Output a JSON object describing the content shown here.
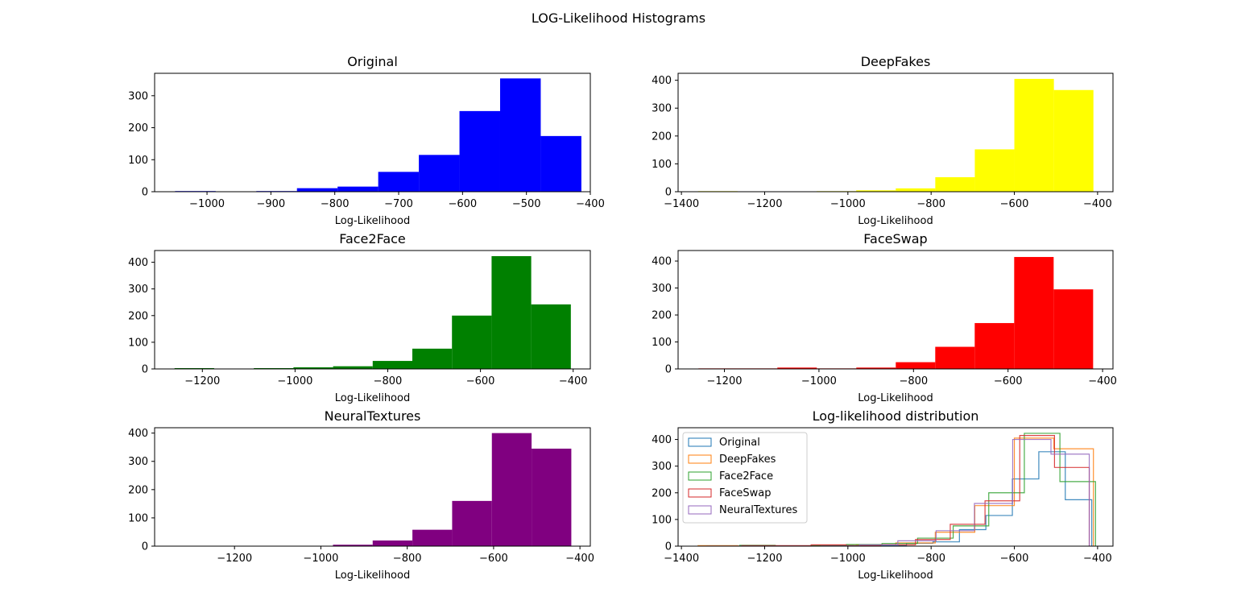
{
  "figure": {
    "title": "LOG-Likelihood Histograms"
  },
  "chart_data": [
    {
      "type": "bar",
      "title": "Original",
      "xlabel": "Log-Likelihood",
      "ylabel": "",
      "color": "#0000ff",
      "xlim": [
        -1082,
        -400
      ],
      "ylim": [
        0,
        370
      ],
      "xticks": [
        -1000,
        -900,
        -800,
        -700,
        -600,
        -500,
        -400
      ],
      "xtick_labels": [
        "−1000",
        "−900",
        "−800",
        "−700",
        "−600",
        "−500",
        "−400"
      ],
      "yticks": [
        0,
        100,
        200,
        300
      ],
      "ytick_labels": [
        "0",
        "100",
        "200",
        "300"
      ],
      "bin_edges": [
        -1050,
        -986.4,
        -922.8,
        -859.2,
        -795.6,
        -732,
        -668.4,
        -604.8,
        -541.2,
        -477.6,
        -414
      ],
      "values": [
        2,
        1,
        2,
        11,
        16,
        62,
        115,
        252,
        354,
        174
      ]
    },
    {
      "type": "bar",
      "title": "DeepFakes",
      "xlabel": "Log-Likelihood",
      "ylabel": "",
      "color": "#ffff00",
      "xlim": [
        -1408,
        -363
      ],
      "ylim": [
        0,
        425
      ],
      "xticks": [
        -1400,
        -1200,
        -1000,
        -800,
        -600,
        -400
      ],
      "xtick_labels": [
        "−1400",
        "−1200",
        "−1000",
        "−800",
        "−600",
        "−400"
      ],
      "yticks": [
        0,
        100,
        200,
        300,
        400
      ],
      "ytick_labels": [
        "0",
        "100",
        "200",
        "300",
        "400"
      ],
      "bin_edges": [
        -1360,
        -1265,
        -1170,
        -1075,
        -980,
        -885,
        -790,
        -695,
        -600,
        -505,
        -410
      ],
      "values": [
        2,
        1,
        1,
        2,
        5,
        12,
        52,
        152,
        405,
        365
      ]
    },
    {
      "type": "bar",
      "title": "Face2Face",
      "xlabel": "Log-Likelihood",
      "ylabel": "",
      "color": "#008000",
      "xlim": [
        -1303,
        -363
      ],
      "ylim": [
        0,
        444
      ],
      "xticks": [
        -1200,
        -1000,
        -800,
        -600,
        -400
      ],
      "xtick_labels": [
        "−1200",
        "−1000",
        "−800",
        "−600",
        "−400"
      ],
      "yticks": [
        0,
        100,
        200,
        300,
        400
      ],
      "ytick_labels": [
        "0",
        "100",
        "200",
        "300",
        "400"
      ],
      "bin_edges": [
        -1260,
        -1174.5,
        -1089,
        -1003.5,
        -918,
        -832.5,
        -747,
        -661.5,
        -576,
        -490.5,
        -405
      ],
      "values": [
        3,
        0,
        3,
        6,
        10,
        30,
        76,
        200,
        423,
        242
      ]
    },
    {
      "type": "bar",
      "title": "FaceSwap",
      "xlabel": "Log-Likelihood",
      "ylabel": "",
      "color": "#ff0000",
      "xlim": [
        -1298,
        -378
      ],
      "ylim": [
        0,
        439
      ],
      "xticks": [
        -1200,
        -1000,
        -800,
        -600,
        -400
      ],
      "xtick_labels": [
        "−1200",
        "−1000",
        "−800",
        "−600",
        "−400"
      ],
      "yticks": [
        0,
        100,
        200,
        300,
        400
      ],
      "ytick_labels": [
        "0",
        "100",
        "200",
        "300",
        "400"
      ],
      "bin_edges": [
        -1255,
        -1171.5,
        -1088,
        -1004.5,
        -921,
        -837.5,
        -754,
        -670.5,
        -587,
        -503.5,
        -420
      ],
      "values": [
        2,
        2,
        5,
        2,
        5,
        25,
        82,
        170,
        415,
        295
      ]
    },
    {
      "type": "bar",
      "title": "NeuralTextures",
      "xlabel": "Log-Likelihood",
      "ylabel": "",
      "color": "#800080",
      "xlim": [
        -1385,
        -376
      ],
      "ylim": [
        0,
        419
      ],
      "xticks": [
        -1200,
        -1000,
        -800,
        -600,
        -400
      ],
      "xtick_labels": [
        "−1200",
        "−1000",
        "−800",
        "−600",
        "−400"
      ],
      "yticks": [
        0,
        100,
        200,
        300,
        400
      ],
      "ytick_labels": [
        "0",
        "100",
        "200",
        "300",
        "400"
      ],
      "bin_edges": [
        -1340,
        -1248,
        -1156,
        -1064,
        -972,
        -880,
        -788,
        -696,
        -604,
        -512,
        -420
      ],
      "values": [
        0,
        0,
        0,
        1,
        5,
        20,
        58,
        160,
        400,
        345
      ]
    },
    {
      "type": "step",
      "title": "Log-likelihood distribution",
      "xlabel": "Log-Likelihood",
      "ylabel": "",
      "xlim": [
        -1408,
        -363
      ],
      "ylim": [
        0,
        444
      ],
      "xticks": [
        -1400,
        -1200,
        -1000,
        -800,
        -600,
        -400
      ],
      "xtick_labels": [
        "−1400",
        "−1200",
        "−1000",
        "−800",
        "−600",
        "−400"
      ],
      "yticks": [
        0,
        100,
        200,
        300,
        400
      ],
      "ytick_labels": [
        "0",
        "100",
        "200",
        "300",
        "400"
      ],
      "legend": "top-left",
      "series": [
        {
          "name": "Original",
          "color": "#1f77b4",
          "bin_edges": [
            -1050,
            -986.4,
            -922.8,
            -859.2,
            -795.6,
            -732,
            -668.4,
            -604.8,
            -541.2,
            -477.6,
            -414
          ],
          "values": [
            2,
            1,
            2,
            11,
            16,
            62,
            115,
            252,
            354,
            174
          ]
        },
        {
          "name": "DeepFakes",
          "color": "#ff7f0e",
          "bin_edges": [
            -1360,
            -1265,
            -1170,
            -1075,
            -980,
            -885,
            -790,
            -695,
            -600,
            -505,
            -410
          ],
          "values": [
            2,
            1,
            1,
            2,
            5,
            12,
            52,
            152,
            405,
            365
          ]
        },
        {
          "name": "Face2Face",
          "color": "#2ca02c",
          "bin_edges": [
            -1260,
            -1174.5,
            -1089,
            -1003.5,
            -918,
            -832.5,
            -747,
            -661.5,
            -576,
            -490.5,
            -405
          ],
          "values": [
            3,
            0,
            3,
            6,
            10,
            30,
            76,
            200,
            423,
            242
          ]
        },
        {
          "name": "FaceSwap",
          "color": "#d62728",
          "bin_edges": [
            -1255,
            -1171.5,
            -1088,
            -1004.5,
            -921,
            -837.5,
            -754,
            -670.5,
            -587,
            -503.5,
            -420
          ],
          "values": [
            2,
            2,
            5,
            2,
            5,
            25,
            82,
            170,
            415,
            295
          ]
        },
        {
          "name": "NeuralTextures",
          "color": "#9467bd",
          "bin_edges": [
            -1340,
            -1248,
            -1156,
            -1064,
            -972,
            -880,
            -788,
            -696,
            -604,
            -512,
            -420
          ],
          "values": [
            0,
            0,
            0,
            1,
            5,
            20,
            58,
            160,
            400,
            345
          ]
        }
      ]
    }
  ]
}
